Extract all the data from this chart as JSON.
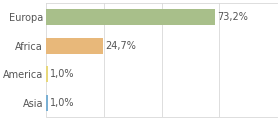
{
  "categories": [
    "Europa",
    "Africa",
    "America",
    "Asia"
  ],
  "values": [
    73.2,
    24.7,
    1.0,
    1.0
  ],
  "labels": [
    "73,2%",
    "24,7%",
    "1,0%",
    "1,0%"
  ],
  "bar_colors": [
    "#a8bf8a",
    "#e8b87a",
    "#e8d87a",
    "#7ab0d4"
  ],
  "background_color": "#ffffff",
  "xlim": [
    0,
    100
  ],
  "bar_height": 0.55,
  "label_fontsize": 7.0,
  "tick_fontsize": 7.0,
  "grid_color": "#d8d8d8",
  "text_color": "#555555"
}
